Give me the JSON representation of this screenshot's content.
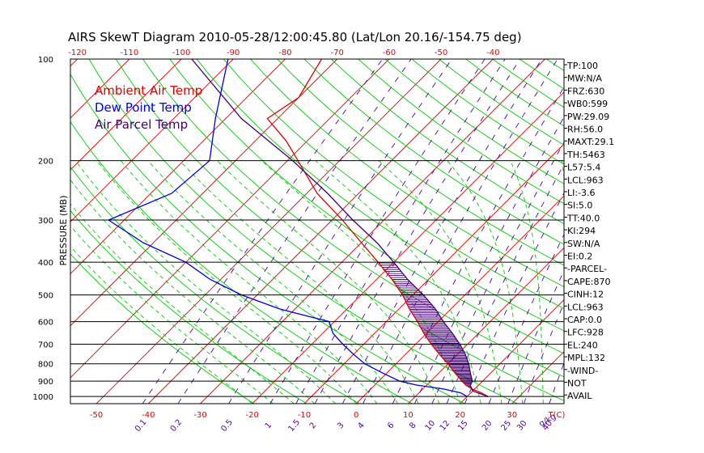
{
  "chart_data": {
    "type": "line",
    "title": "AIRS SkewT Diagram 2010-05-28/12:00:45.80 (Lat/Lon 20.16/-154.75 deg)",
    "ylabel": "PRESSURE (MB)",
    "y_scale": "log",
    "ylim": [
      1050,
      100
    ],
    "xlim_at_1050mb": [
      -55,
      40
    ],
    "pressure_ticks": [
      100,
      200,
      300,
      400,
      500,
      600,
      700,
      800,
      900,
      1000
    ],
    "bottom_temp_ticks": [
      -50,
      -40,
      -30,
      -20,
      -10,
      0,
      10,
      20,
      30
    ],
    "bottom_temp_unit": "T(C)",
    "top_temp_ticks": [
      -120,
      -110,
      -100,
      -90,
      -80,
      -70,
      -60,
      -50,
      -40
    ],
    "mixing_ratio_ticks": [
      "0.1",
      "0.2",
      "0.5",
      "1",
      "1.5",
      "2",
      "3",
      "4",
      "6",
      "8",
      "10",
      "12",
      "15",
      "20",
      "25",
      "30",
      "40"
    ],
    "mixing_ratio_unit": "g/kg",
    "legend": [
      "Ambient Air Temp",
      "Dew Point Temp",
      "Air Parcel Temp"
    ],
    "legend_placement": "top-left",
    "colors": {
      "ambient": "#e00000",
      "dewpoint": "#0000e0",
      "parcel": "#400070",
      "isotherm": "#e00000",
      "dry_adiabat": "#00cc00",
      "moist_adiabat": "#00cc00",
      "mixing_ratio": "#5000a0",
      "text": "#000000"
    },
    "series": [
      {
        "name": "Ambient Air Temp",
        "points": [
          [
            1000,
            24
          ],
          [
            975,
            22
          ],
          [
            950,
            19.5
          ],
          [
            925,
            17.5
          ],
          [
            900,
            16
          ],
          [
            850,
            13
          ],
          [
            800,
            10
          ],
          [
            750,
            6.5
          ],
          [
            700,
            3
          ],
          [
            650,
            -0.5
          ],
          [
            600,
            -4
          ],
          [
            550,
            -8
          ],
          [
            500,
            -12
          ],
          [
            450,
            -17
          ],
          [
            400,
            -23
          ],
          [
            350,
            -30
          ],
          [
            300,
            -38
          ],
          [
            250,
            -48
          ],
          [
            200,
            -58
          ],
          [
            175,
            -64
          ],
          [
            150,
            -72
          ],
          [
            130,
            -70
          ],
          [
            100,
            -73
          ]
        ]
      },
      {
        "name": "Dew Point Temp",
        "points": [
          [
            1000,
            20
          ],
          [
            975,
            18
          ],
          [
            950,
            14
          ],
          [
            925,
            8
          ],
          [
            900,
            4
          ],
          [
            850,
            -1
          ],
          [
            800,
            -6
          ],
          [
            750,
            -10
          ],
          [
            700,
            -14
          ],
          [
            650,
            -18
          ],
          [
            600,
            -21
          ],
          [
            550,
            -33
          ],
          [
            500,
            -43
          ],
          [
            450,
            -52
          ],
          [
            400,
            -60
          ],
          [
            350,
            -72
          ],
          [
            300,
            -83
          ],
          [
            250,
            -76
          ],
          [
            200,
            -75
          ],
          [
            150,
            -82
          ],
          [
            100,
            -91
          ]
        ]
      },
      {
        "name": "Air Parcel Temp",
        "points": [
          [
            1000,
            24
          ],
          [
            963,
            20
          ],
          [
            928,
            18.5
          ],
          [
            900,
            18
          ],
          [
            850,
            16
          ],
          [
            800,
            14
          ],
          [
            750,
            11.5
          ],
          [
            700,
            8.5
          ],
          [
            650,
            5
          ],
          [
            600,
            1
          ],
          [
            550,
            -3
          ],
          [
            500,
            -8
          ],
          [
            450,
            -14
          ],
          [
            400,
            -20
          ],
          [
            350,
            -27
          ],
          [
            300,
            -36
          ],
          [
            250,
            -46
          ],
          [
            200,
            -59
          ],
          [
            150,
            -77
          ],
          [
            100,
            -98
          ]
        ]
      }
    ],
    "indices": [
      "TP:100",
      "MW:N/A",
      "FRZ:630",
      "WB0:599",
      "PW:29.09",
      "RH:56.0",
      "MAXT:29.1",
      "TH:5463",
      "L57:5.4",
      "LCL:963",
      "LI:-3.6",
      "SI:5.0",
      "TT:40.0",
      "KI:294",
      "SW:N/A",
      "EI:0.2",
      "-PARCEL-",
      "CAPE:870",
      "CINH:12",
      "LCL:963",
      "CAP:0.0",
      "LFC:928",
      "EL:240",
      "MPL:132",
      "-WIND-",
      "NOT",
      "AVAIL"
    ]
  }
}
